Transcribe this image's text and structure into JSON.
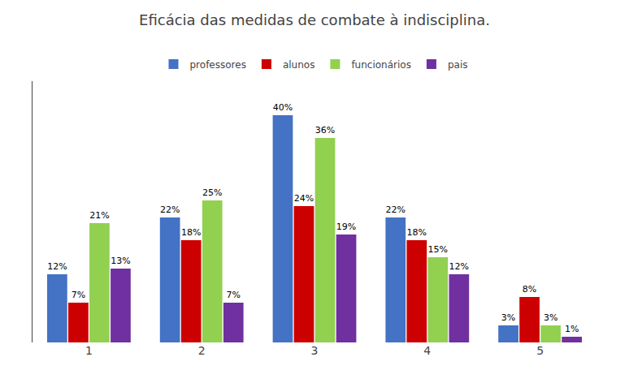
{
  "chart_data": {
    "type": "bar",
    "title": "Eficácia das medidas de combate à indisciplina.",
    "categories": [
      "1",
      "2",
      "3",
      "4",
      "5"
    ],
    "series": [
      {
        "name": "professores",
        "color": "#4472C4",
        "values": [
          12,
          22,
          40,
          22,
          3
        ],
        "value_labels": [
          "12%",
          "22%",
          "40%",
          "22%",
          "3%"
        ]
      },
      {
        "name": "alunos",
        "color": "#CC0000",
        "values": [
          7,
          18,
          24,
          18,
          8
        ],
        "value_labels": [
          "7%",
          "18%",
          "24%",
          "18%",
          "8%"
        ]
      },
      {
        "name": "funcionários",
        "color": "#92D050",
        "values": [
          21,
          25,
          36,
          15,
          3
        ],
        "value_labels": [
          "21%",
          "25%",
          "36%",
          "15%",
          "3%"
        ]
      },
      {
        "name": "pais",
        "color": "#7030A0",
        "values": [
          13,
          7,
          19,
          12,
          1
        ],
        "value_labels": [
          "13%",
          "7%",
          "19%",
          "12%",
          "1%"
        ]
      }
    ],
    "ylim": [
      0,
      46
    ],
    "grid": false,
    "legend": "top",
    "data_labels": true,
    "tick_labels": "x"
  }
}
